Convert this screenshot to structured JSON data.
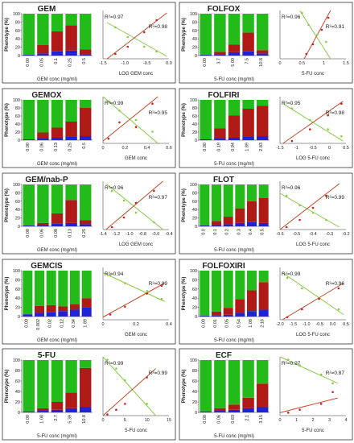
{
  "colors": {
    "green": "#22bb1a",
    "blue": "#1f22d6",
    "red": "#b01a16",
    "fitGreen": "#88cc44",
    "fitRed": "#c24a2a",
    "point": "#cc2222"
  },
  "ylabel": "Phenotype (%)",
  "bar_ticks": [
    "0",
    "20",
    "40",
    "60",
    "80",
    "100"
  ],
  "chart_data": [
    {
      "type": "bar",
      "title": "GEM",
      "xlabel": "GEM conc (mg/ml)",
      "categories": [
        "0.00",
        "0.05",
        "0.1",
        "0.25",
        "0.5"
      ],
      "series": [
        {
          "values": [
            2,
            5,
            10,
            12,
            3
          ]
        },
        {
          "values": [
            0,
            20,
            48,
            60,
            12
          ]
        },
        {
          "values": [
            98,
            75,
            42,
            28,
            85
          ]
        }
      ],
      "fit": {
        "type": "line",
        "xlabel": "LOG GEM conc",
        "xticks": [
          "-1.5",
          "-1.0",
          "-0.5",
          "0.0"
        ],
        "xlim": [
          -1.6,
          0.0
        ],
        "r2_green": "R²=0.97",
        "r2_red": "R²=0.98",
        "green_pts": [
          [
            -1.3,
            65
          ],
          [
            -1.0,
            45
          ],
          [
            -0.6,
            25
          ],
          [
            -0.3,
            15
          ]
        ],
        "red_pts": [
          [
            -1.3,
            10
          ],
          [
            -1.0,
            25
          ],
          [
            -0.6,
            55
          ],
          [
            -0.3,
            80
          ]
        ],
        "green_line": [
          [
            -1.5,
            75
          ],
          [
            -0.05,
            5
          ]
        ],
        "red_line": [
          [
            -1.5,
            0
          ],
          [
            -0.05,
            95
          ]
        ]
      }
    },
    {
      "type": "bar",
      "title": "FOLFOX",
      "xlabel": "5-FU conc (mg/ml)",
      "categories": [
        "0.00",
        "3.7",
        "5.00",
        "7.5",
        "10.8"
      ],
      "series": [
        {
          "values": [
            2,
            3,
            8,
            10,
            5
          ]
        },
        {
          "values": [
            0,
            6,
            18,
            45,
            8
          ]
        },
        {
          "values": [
            98,
            91,
            74,
            45,
            87
          ]
        }
      ],
      "fit": {
        "type": "line",
        "xlabel": "5-FU conc",
        "xticks": [
          "0",
          "0.5",
          "1",
          "1.5"
        ],
        "xlim": [
          0,
          1.5
        ],
        "r2_green": "R²=0.96",
        "r2_red": "R²=0.91",
        "green_pts": [
          [
            0.5,
            95
          ],
          [
            0.65,
            70
          ],
          [
            0.85,
            50
          ],
          [
            1.05,
            35
          ]
        ],
        "red_pts": [
          [
            0.6,
            10
          ],
          [
            0.75,
            30
          ],
          [
            0.95,
            60
          ],
          [
            1.1,
            85
          ]
        ],
        "green_line": [
          [
            0.45,
            100
          ],
          [
            1.15,
            0
          ]
        ],
        "red_line": [
          [
            0.55,
            0
          ],
          [
            1.15,
            100
          ]
        ]
      }
    },
    {
      "type": "bar",
      "title": "GEMOX",
      "xlabel": "GEM conc (mg/ml)",
      "categories": [
        "0.00",
        "0.06",
        "0.13",
        "0.25",
        "0.5"
      ],
      "series": [
        {
          "values": [
            2,
            4,
            6,
            8,
            10
          ]
        },
        {
          "values": [
            0,
            15,
            25,
            38,
            70
          ]
        },
        {
          "values": [
            98,
            81,
            69,
            54,
            20
          ]
        }
      ],
      "fit": {
        "type": "line",
        "xlabel": "GEM conc",
        "xticks": [
          "0",
          "0.2",
          "0.4",
          "0.6"
        ],
        "xlim": [
          0,
          0.6
        ],
        "r2_green": "R²=0.99",
        "r2_red": "R²=0.95",
        "green_pts": [
          [
            0.05,
            90
          ],
          [
            0.15,
            70
          ],
          [
            0.3,
            50
          ],
          [
            0.45,
            25
          ]
        ],
        "red_pts": [
          [
            0.05,
            10
          ],
          [
            0.15,
            45
          ],
          [
            0.3,
            35
          ],
          [
            0.45,
            85
          ]
        ],
        "green_line": [
          [
            0.0,
            100
          ],
          [
            0.5,
            0
          ]
        ],
        "red_line": [
          [
            0.0,
            5
          ],
          [
            0.5,
            100
          ]
        ]
      }
    },
    {
      "type": "bar",
      "title": "FOLFIRI",
      "xlabel": "5-FU conc (mg/ml)",
      "categories": [
        "0.00",
        "0.19",
        "0.94",
        "1.89",
        "2.83"
      ],
      "series": [
        {
          "values": [
            2,
            4,
            6,
            8,
            10
          ]
        },
        {
          "values": [
            0,
            25,
            55,
            70,
            75
          ]
        },
        {
          "values": [
            98,
            71,
            39,
            22,
            15
          ]
        }
      ],
      "fit": {
        "type": "line",
        "xlabel": "LOG 5-FU conc",
        "xticks": [
          "-1.5",
          "-1",
          "-0.5",
          "0",
          "0.5"
        ],
        "xlim": [
          -1.6,
          0.6
        ],
        "r2_green": "R²=0.95",
        "r2_red": "R²=0.98",
        "green_pts": [
          [
            -1.2,
            75
          ],
          [
            -0.6,
            50
          ],
          [
            0.0,
            30
          ],
          [
            0.45,
            15
          ]
        ],
        "red_pts": [
          [
            -1.2,
            5
          ],
          [
            -0.6,
            30
          ],
          [
            0.0,
            60
          ],
          [
            0.45,
            85
          ]
        ],
        "green_line": [
          [
            -1.5,
            85
          ],
          [
            0.5,
            5
          ]
        ],
        "red_line": [
          [
            -1.5,
            0
          ],
          [
            0.5,
            90
          ]
        ]
      }
    },
    {
      "type": "bar",
      "title": "GEM/nab-P",
      "xlabel": "GEM conc (mg/ml)",
      "categories": [
        "0.00",
        "0.06",
        "0.08",
        "0.13",
        "0.25"
      ],
      "series": [
        {
          "values": [
            2,
            3,
            6,
            8,
            5
          ]
        },
        {
          "values": [
            0,
            5,
            25,
            55,
            10
          ]
        },
        {
          "values": [
            98,
            92,
            69,
            37,
            85
          ]
        }
      ],
      "fit": {
        "type": "line",
        "xlabel": "LOG GEM conc",
        "xticks": [
          "-1.4",
          "-1.2",
          "-1.0",
          "-0.8",
          "-0.6",
          "-0.4"
        ],
        "xlim": [
          -1.45,
          -0.35
        ],
        "r2_green": "R²=0.96",
        "r2_red": "R²=0.97",
        "green_pts": [
          [
            -1.3,
            80
          ],
          [
            -1.1,
            60
          ],
          [
            -0.9,
            35
          ],
          [
            -0.6,
            15
          ]
        ],
        "red_pts": [
          [
            -1.3,
            5
          ],
          [
            -1.1,
            25
          ],
          [
            -0.9,
            55
          ],
          [
            -0.6,
            80
          ]
        ],
        "green_line": [
          [
            -1.4,
            95
          ],
          [
            -0.45,
            0
          ]
        ],
        "red_line": [
          [
            -1.4,
            0
          ],
          [
            -0.45,
            100
          ]
        ]
      }
    },
    {
      "type": "bar",
      "title": "FLOT",
      "xlabel": "5-FU conc (mg/ml)",
      "categories": [
        "0.0",
        "0.1",
        "0.2",
        "0.3",
        "0.4",
        "0.5"
      ],
      "series": [
        {
          "values": [
            2,
            3,
            5,
            8,
            10,
            8
          ]
        },
        {
          "values": [
            0,
            10,
            18,
            35,
            50,
            60
          ]
        },
        {
          "values": [
            98,
            87,
            77,
            57,
            40,
            32
          ]
        }
      ],
      "fit": {
        "type": "line",
        "xlabel": "LOG 5-FU conc",
        "xticks": [
          "-0.6",
          "-0.5",
          "-0.4",
          "-0.3",
          "-0.2"
        ],
        "xlim": [
          -0.65,
          -0.15
        ],
        "r2_green": "R²=0.96",
        "r2_red": "R²=0.99",
        "green_pts": [
          [
            -0.6,
            70
          ],
          [
            -0.5,
            50
          ],
          [
            -0.4,
            35
          ],
          [
            -0.3,
            20
          ]
        ],
        "red_pts": [
          [
            -0.6,
            5
          ],
          [
            -0.5,
            20
          ],
          [
            -0.4,
            45
          ],
          [
            -0.3,
            70
          ]
        ],
        "green_line": [
          [
            -0.65,
            75
          ],
          [
            -0.2,
            5
          ]
        ],
        "red_line": [
          [
            -0.65,
            0
          ],
          [
            -0.2,
            95
          ]
        ]
      }
    },
    {
      "type": "bar",
      "title": "GEMCIS",
      "xlabel": "GEM conc (mg/ml)",
      "categories": [
        "0.00",
        "0.002",
        "0.02",
        "0.12",
        "0.34",
        "1.89"
      ],
      "series": [
        {
          "values": [
            5,
            8,
            10,
            12,
            15,
            20
          ]
        },
        {
          "values": [
            0,
            15,
            15,
            10,
            12,
            20
          ]
        },
        {
          "values": [
            95,
            77,
            75,
            78,
            73,
            60
          ]
        }
      ],
      "fit": {
        "type": "line",
        "xlabel": "GEM conc",
        "xticks": [
          "0",
          "0.2",
          "0.4"
        ],
        "xlim": [
          0,
          0.45
        ],
        "r2_green": "R²=0.94",
        "r2_red": "R²=0.99",
        "green_pts": [
          [
            0.05,
            85
          ],
          [
            0.15,
            70
          ],
          [
            0.3,
            55
          ],
          [
            0.4,
            40
          ]
        ],
        "red_pts": [
          [
            0.05,
            10
          ],
          [
            0.15,
            25
          ],
          [
            0.3,
            50
          ],
          [
            0.4,
            65
          ]
        ],
        "green_line": [
          [
            0.0,
            90
          ],
          [
            0.42,
            35
          ]
        ],
        "red_line": [
          [
            0.0,
            5
          ],
          [
            0.42,
            70
          ]
        ]
      }
    },
    {
      "type": "bar",
      "title": "FOLFOXIRI",
      "xlabel": "5-FU conc (mg/ml)",
      "categories": [
        "0.00",
        "0.01",
        "0.05",
        "0.54",
        "1.08",
        "2.16"
      ],
      "series": [
        {
          "values": [
            2,
            3,
            4,
            8,
            12,
            15
          ]
        },
        {
          "values": [
            0,
            8,
            15,
            30,
            45,
            60
          ]
        },
        {
          "values": [
            98,
            89,
            81,
            62,
            43,
            25
          ]
        }
      ],
      "fit": {
        "type": "line",
        "xlabel": "LOG 5-FU conc",
        "xticks": [
          "-2.0",
          "-1.5",
          "-1.0",
          "-0.5",
          "0.0",
          "0.5"
        ],
        "xlim": [
          -2.1,
          0.6
        ],
        "r2_green": "R²=0.99",
        "r2_red": "R²=0.96",
        "green_pts": [
          [
            -1.8,
            80
          ],
          [
            -1.2,
            60
          ],
          [
            -0.5,
            40
          ],
          [
            0.3,
            20
          ]
        ],
        "red_pts": [
          [
            -1.8,
            5
          ],
          [
            -1.2,
            20
          ],
          [
            -0.5,
            40
          ],
          [
            0.3,
            60
          ]
        ],
        "green_line": [
          [
            -2.0,
            90
          ],
          [
            0.5,
            10
          ]
        ],
        "red_line": [
          [
            -2.0,
            0
          ],
          [
            0.5,
            70
          ]
        ]
      }
    },
    {
      "type": "bar",
      "title": "5-FU",
      "xlabel": "5-FU conc (mg/ml)",
      "categories": [
        "0.00",
        "1.08",
        "2.7",
        "5.39",
        "10.8"
      ],
      "series": [
        {
          "values": [
            2,
            3,
            5,
            8,
            10
          ]
        },
        {
          "values": [
            0,
            5,
            15,
            30,
            75
          ]
        },
        {
          "values": [
            98,
            92,
            80,
            62,
            15
          ]
        }
      ],
      "fit": {
        "type": "line",
        "xlabel": "5-FU conc",
        "xticks": [
          "0",
          "5",
          "10",
          "15"
        ],
        "xlim": [
          0,
          15
        ],
        "r2_green": "R²=0.99",
        "r2_red": "R²=0.99",
        "green_pts": [
          [
            1,
            95
          ],
          [
            3,
            80
          ],
          [
            5,
            60
          ],
          [
            10,
            20
          ]
        ],
        "red_pts": [
          [
            1,
            2
          ],
          [
            3,
            10
          ],
          [
            5,
            20
          ],
          [
            10,
            65
          ]
        ],
        "green_line": [
          [
            0,
            100
          ],
          [
            12,
            0
          ]
        ],
        "red_line": [
          [
            0,
            0
          ],
          [
            12,
            80
          ]
        ]
      }
    },
    {
      "type": "bar",
      "title": "ECF",
      "xlabel": "5-FU conc (mg/ml)",
      "categories": [
        "0.00",
        "0.06",
        "0.63",
        "2.1",
        "3.15"
      ],
      "series": [
        {
          "values": [
            2,
            3,
            5,
            8,
            10
          ]
        },
        {
          "values": [
            0,
            5,
            10,
            20,
            45
          ]
        },
        {
          "values": [
            98,
            92,
            85,
            72,
            45
          ]
        }
      ],
      "fit": {
        "type": "line",
        "xlabel": "5-FU conc",
        "xticks": [
          "0",
          "1",
          "2",
          "3",
          "4"
        ],
        "xlim": [
          0,
          4
        ],
        "r2_green": "R²=0.97",
        "r2_red": "R²=0.87",
        "green_pts": [
          [
            0.5,
            95
          ],
          [
            1.2,
            85
          ],
          [
            2.5,
            70
          ],
          [
            3.2,
            55
          ]
        ],
        "red_pts": [
          [
            0.5,
            5
          ],
          [
            1.2,
            10
          ],
          [
            2.5,
            20
          ],
          [
            3.2,
            40
          ]
        ],
        "green_line": [
          [
            0,
            100
          ],
          [
            3.5,
            55
          ]
        ],
        "red_line": [
          [
            0,
            5
          ],
          [
            3.5,
            30
          ]
        ]
      }
    }
  ]
}
